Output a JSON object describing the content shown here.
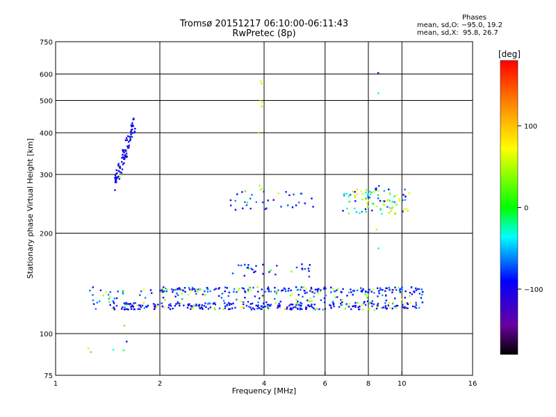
{
  "header": {
    "title": "Tromsø 20151217 06:10:00-06:11:43",
    "subtitle": "RwPretec (8p)"
  },
  "phase_info": {
    "heading": "Phases",
    "line_o": "mean, sd,O: −95.0, 19.2",
    "line_x": "mean, sd,X:  95.8, 26.7"
  },
  "colorbar": {
    "label": "[deg]",
    "ticks": [
      "100",
      "0",
      "−100"
    ],
    "tick_values": [
      100,
      0,
      -100
    ],
    "range": [
      -180,
      180
    ]
  },
  "chart_data": {
    "type": "scatter",
    "xlabel": "Frequency [MHz]",
    "ylabel": "Stationary phase Virtual Height [km]",
    "x_scale": "log",
    "y_scale": "log",
    "xlim": [
      1,
      16
    ],
    "ylim": [
      75,
      750
    ],
    "x_ticks": [
      1,
      2,
      4,
      6,
      8,
      10,
      16
    ],
    "x_tick_labels": [
      "1",
      "2",
      "4",
      "6",
      "8",
      "10",
      "16"
    ],
    "y_ticks": [
      75,
      100,
      200,
      300,
      400,
      500,
      600,
      750
    ],
    "y_tick_labels": [
      "75",
      "100",
      "200",
      "300",
      "400",
      "500",
      "600",
      "750"
    ],
    "x_gridlines": [
      2,
      4,
      6,
      8,
      10
    ],
    "y_gridlines": [
      100,
      200,
      300,
      400,
      500,
      600
    ],
    "color_variable": "phase [deg]",
    "point_groups": [
      {
        "desc": "F-region O trace",
        "x": [
          1.48,
          1.7
        ],
        "y": [
          280,
          440
        ],
        "count": 90,
        "phase": [
          -100,
          -90
        ],
        "hi": [
          0.06,
          80
        ]
      },
      {
        "desc": "E-region main",
        "x": [
          1.45,
          11.0
        ],
        "y": [
          118,
          124
        ],
        "count": 230,
        "phase": [
          -115,
          -75
        ],
        "hi": [
          0.12,
          90
        ]
      },
      {
        "desc": "E-region scattered",
        "x": [
          1.25,
          11.5
        ],
        "y": [
          118,
          138
        ],
        "count": 230,
        "phase": [
          -110,
          -50
        ],
        "hi": [
          0.2,
          85
        ]
      },
      {
        "desc": "E-region upper band",
        "x": [
          2.0,
          11.5
        ],
        "y": [
          133,
          138
        ],
        "count": 140,
        "phase": [
          -110,
          -60
        ],
        "hi": [
          0.15,
          85
        ]
      },
      {
        "desc": "Es layer 150",
        "x": [
          3.2,
          5.6
        ],
        "y": [
          148,
          162
        ],
        "count": 30,
        "phase": [
          -110,
          -70
        ],
        "hi": [
          0.2,
          50
        ]
      },
      {
        "desc": "F2 middle",
        "x": [
          3.2,
          5.6
        ],
        "y": [
          235,
          268
        ],
        "count": 35,
        "phase": [
          -110,
          -60
        ],
        "hi": [
          0.1,
          60
        ]
      },
      {
        "desc": "F2 high-frequency",
        "x": [
          6.7,
          10.5
        ],
        "y": [
          228,
          272
        ],
        "count": 90,
        "phase": [
          -105,
          10
        ],
        "hi": [
          0.4,
          95
        ]
      },
      {
        "desc": "column near 3.9 MHz",
        "x": [
          3.85,
          3.95
        ],
        "y": [
          230,
          660
        ],
        "count": 9,
        "phase": [
          30,
          80
        ],
        "hi": [
          0.3,
          100
        ]
      },
      {
        "desc": "column near 8.5 MHz",
        "x": [
          8.4,
          8.6
        ],
        "y": [
          170,
          610
        ],
        "count": 9,
        "phase": [
          -110,
          -20
        ],
        "hi": [
          0.2,
          90
        ]
      },
      {
        "desc": "low isolated",
        "x": [
          1.2,
          1.7
        ],
        "y": [
          85,
          110
        ],
        "count": 6,
        "phase": [
          -110,
          150
        ],
        "hi": [
          0.3,
          120
        ]
      }
    ]
  }
}
